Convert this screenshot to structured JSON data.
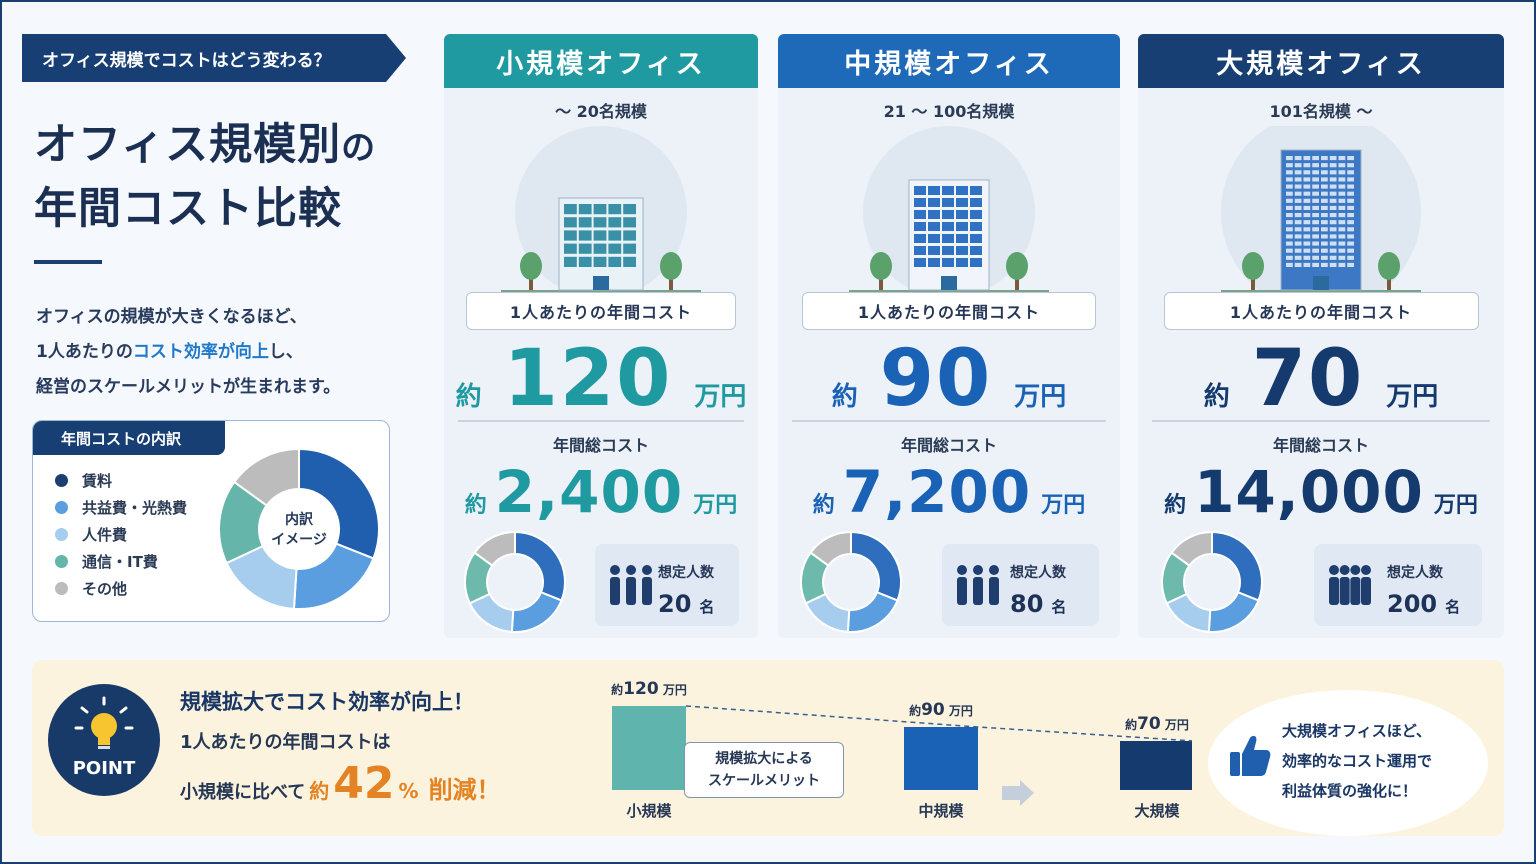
{
  "header": {
    "ribbon": "オフィス規模でコストはどう変わる？",
    "title_line1_main": "オフィス規模別",
    "title_line1_suffix": "の",
    "title_line2": "年間コスト比較"
  },
  "description": {
    "line1": "オフィスの規模が大きくなるほど、",
    "line2_pre": "1人あたりの",
    "line2_highlight": "コスト効率が向上",
    "line2_post": "し、",
    "line3": "経営のスケールメリットが生まれます。"
  },
  "breakdown": {
    "title": "年間コストの内訳",
    "center_line1": "内訳",
    "center_line2": "イメージ",
    "items": [
      {
        "label": "賃料",
        "color": "#1c3f72"
      },
      {
        "label": "共益費・光熱費",
        "color": "#5b9ee0"
      },
      {
        "label": "人件費",
        "color": "#a6cdee"
      },
      {
        "label": "通信・IT費",
        "color": "#66b5ab"
      },
      {
        "label": "その他",
        "color": "#bcbcbc"
      }
    ]
  },
  "labels": {
    "per_person": "1人あたりの年間コスト",
    "approx": "約",
    "unit_man_yen": "万円",
    "total": "年間総コスト",
    "headcount": "想定人数",
    "person_unit": "名"
  },
  "cards": [
    {
      "name": "小規模オフィス",
      "range": "～ 20名規模",
      "per_person": "120",
      "total": "2,400",
      "headcount": "20",
      "color": "#1f9aa0",
      "head_color": "#1f9aa0"
    },
    {
      "name": "中規模オフィス",
      "range": "21 ～ 100名規模",
      "per_person": "90",
      "total": "7,200",
      "headcount": "80",
      "color": "#1a62b5",
      "head_color": "#1f6ab8"
    },
    {
      "name": "大規模オフィス",
      "range": "101名規模 ～",
      "per_person": "70",
      "total": "14,000",
      "headcount": "200",
      "color": "#143a6e",
      "head_color": "#173f73"
    }
  ],
  "point": {
    "badge": "POINT",
    "heading": "規模拡大でコスト効率が向上！",
    "line2": "1人あたりの年間コストは",
    "line3_pre": "小規模に比べて",
    "line3_approx": "約",
    "percent": "42",
    "percent_unit": "%",
    "reduction": "削減！"
  },
  "chart_data": {
    "type": "bar",
    "categories": [
      "小規模",
      "中規模",
      "大規模"
    ],
    "values": [
      120,
      90,
      70
    ],
    "value_labels": [
      "120",
      "90",
      "70"
    ],
    "value_prefix": "約",
    "value_unit": "万円",
    "colors": [
      "#5fb4ad",
      "#1a62b5",
      "#143a6e"
    ]
  },
  "merit": {
    "line1": "規模拡大による",
    "line2": "スケールメリット"
  },
  "summary": {
    "line1": "大規模オフィスほど、",
    "line2": "効率的なコスト運用で",
    "line3": "利益体質の強化に！"
  }
}
